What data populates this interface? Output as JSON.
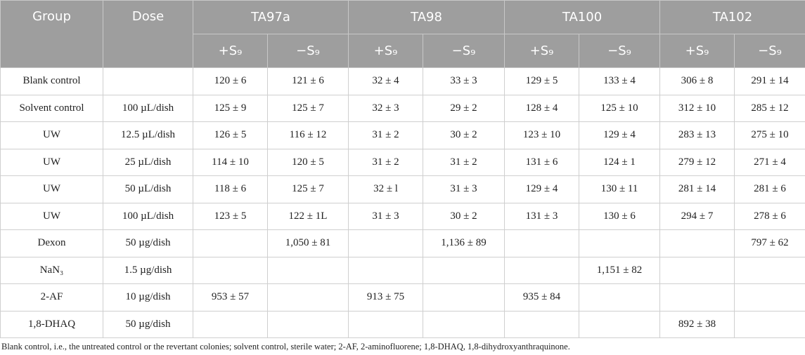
{
  "table": {
    "header": {
      "columns": [
        "Group",
        "Dose"
      ],
      "strains": [
        "TA97a",
        "TA98",
        "TA100",
        "TA102"
      ],
      "conditions": [
        "+S₉",
        "−S₉"
      ]
    },
    "rows": [
      [
        "Blank control",
        null,
        "120 ± 6",
        "121 ± 6",
        "32 ± 4",
        "33 ± 3",
        "129 ± 5",
        "133 ± 4",
        "306 ± 8",
        "291 ± 14"
      ],
      [
        "Solvent control",
        "100 µL/dish",
        "125 ± 9",
        "125 ± 7",
        "32 ± 3",
        "29 ± 2",
        "128 ± 4",
        "125 ± 10",
        "312 ± 10",
        "285 ± 12"
      ],
      [
        "UW",
        "12.5 µL/dish",
        "126 ± 5",
        "116 ± 12",
        "31 ± 2",
        "30 ± 2",
        "123 ± 10",
        "129 ± 4",
        "283 ± 13",
        "275 ± 10"
      ],
      [
        "UW",
        "25 µL/dish",
        "114 ± 10",
        "120 ± 5",
        "31 ± 2",
        "31 ± 2",
        "131 ± 6",
        "124 ± 1",
        "279 ± 12",
        "271 ± 4"
      ],
      [
        "UW",
        "50 µL/dish",
        "118 ± 6",
        "125 ± 7",
        "32 ± l",
        "31 ± 3",
        "129 ± 4",
        "130 ± 11",
        "281 ± 14",
        "281 ± 6"
      ],
      [
        "UW",
        "100 µL/dish",
        "123 ± 5",
        "122 ± 1L",
        "31 ± 3",
        "30 ± 2",
        "131 ± 3",
        "130 ± 6",
        "294 ± 7",
        "278 ± 6"
      ],
      [
        "Dexon",
        "50 µg/dish",
        null,
        "1,050 ± 81",
        null,
        "1,136 ± 89",
        null,
        null,
        null,
        "797 ± 62"
      ],
      [
        "NaN₃",
        "1.5 µg/dish",
        null,
        null,
        null,
        null,
        null,
        "1,151 ± 82",
        null,
        null
      ],
      [
        "2-AF",
        "10 µg/dish",
        "953 ± 57",
        null,
        "913 ± 75",
        null,
        "935 ± 84",
        null,
        null,
        null
      ],
      [
        "1,8-DHAQ",
        "50 µg/dish",
        null,
        null,
        null,
        null,
        null,
        null,
        "892 ± 38",
        null
      ]
    ]
  },
  "footnote": "Blank control, i.e., the untreated control or the revertant colonies; solvent control, sterile water; 2-AF, 2-aminofluorene; 1,8-DHAQ, 1,8-dihydroxyanthraquinone."
}
